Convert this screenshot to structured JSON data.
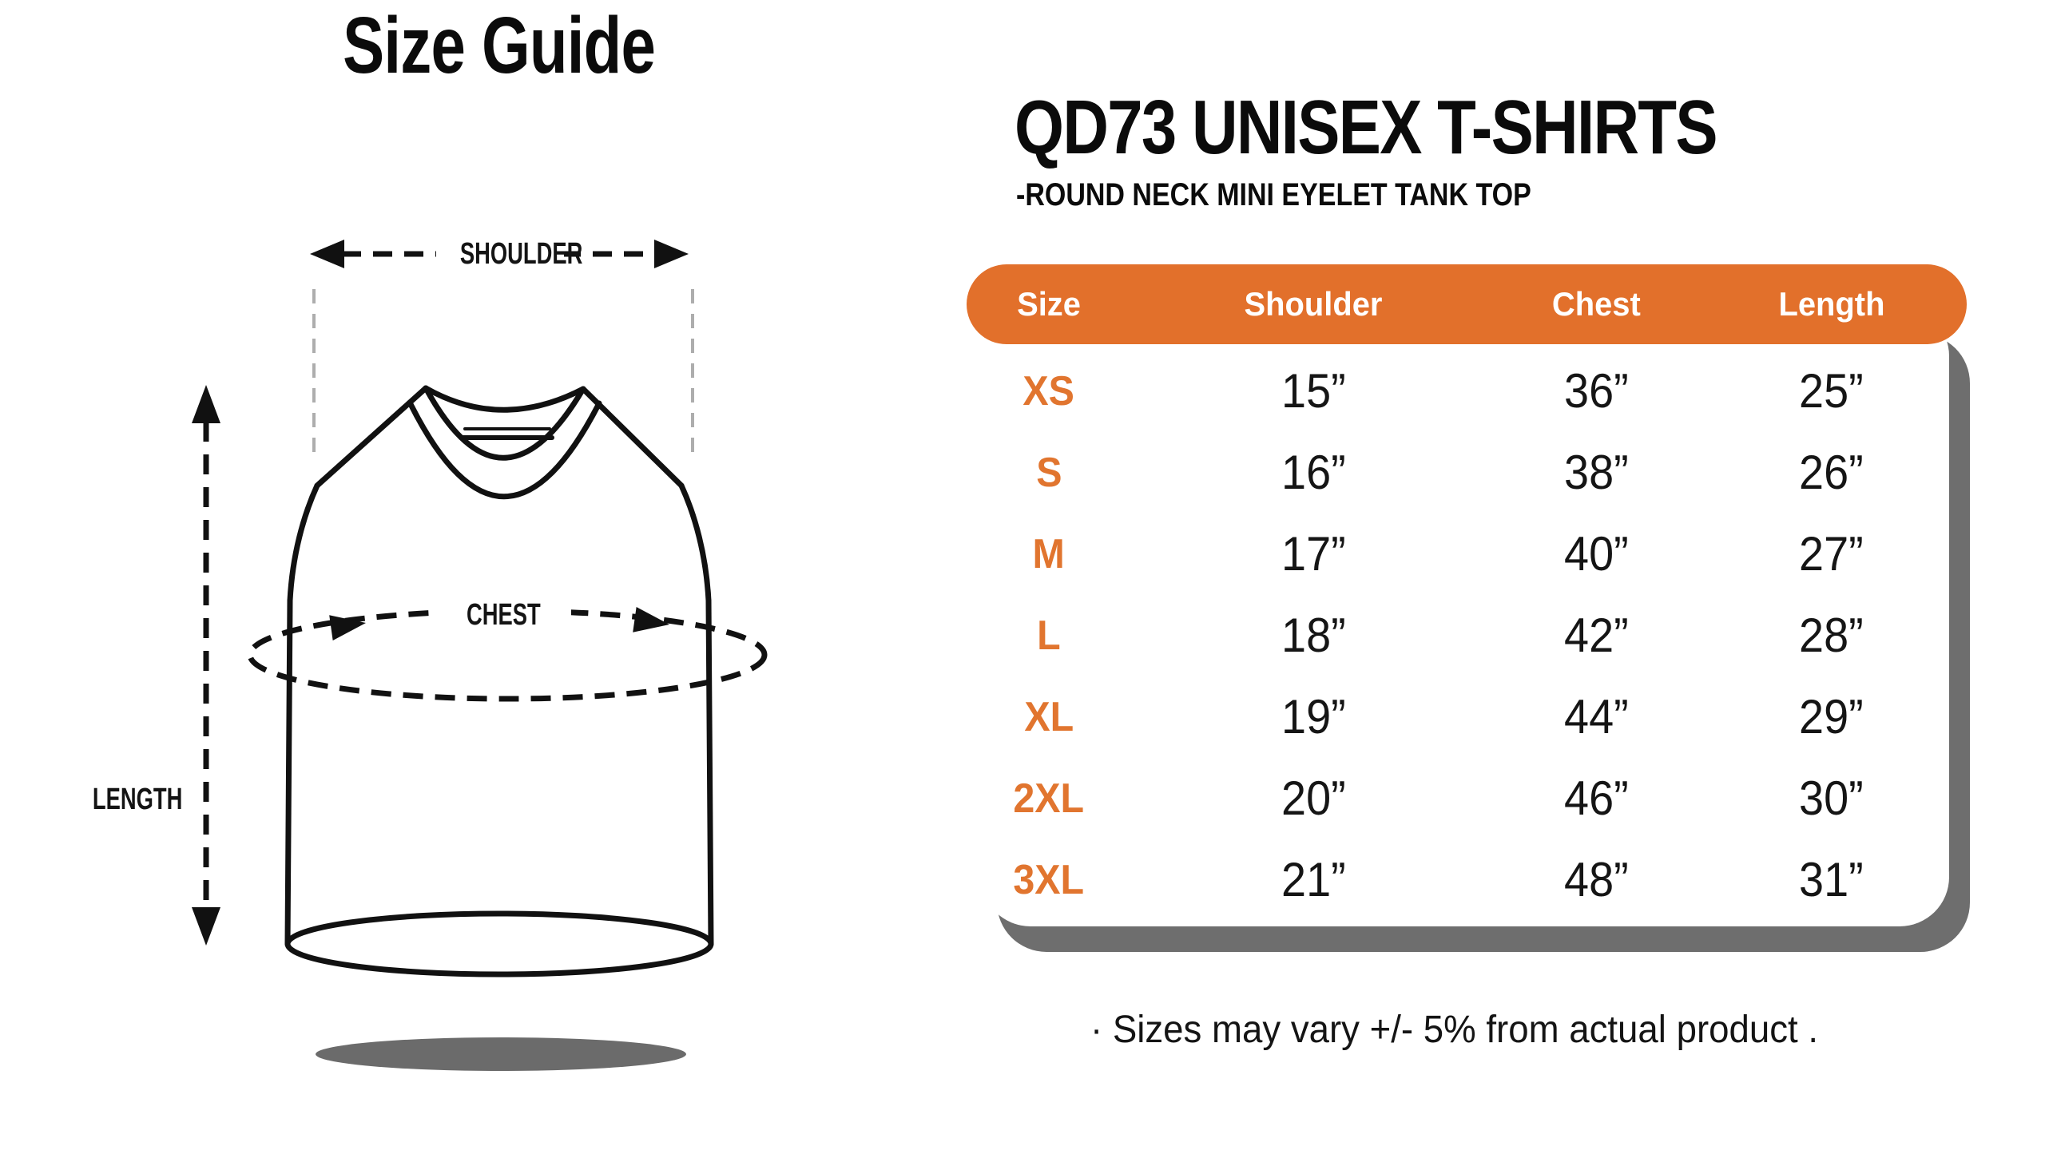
{
  "left_panel": {
    "title": "Size Guide",
    "labels": {
      "shoulder": "SHOULDER",
      "chest": "CHEST",
      "length": "LENGTH"
    }
  },
  "right_panel": {
    "title": "QD73 UNISEX T-SHIRTS",
    "subtitle": "-ROUND NECK MINI EYELET TANK TOP",
    "note": "· Sizes may vary +/- 5% from actual product .",
    "table": {
      "headers": [
        "Size",
        "Shoulder",
        "Chest",
        "Length"
      ],
      "rows": [
        {
          "size": "XS",
          "shoulder": "15”",
          "chest": "36”",
          "length": "25”"
        },
        {
          "size": "S",
          "shoulder": "16”",
          "chest": "38”",
          "length": "26”"
        },
        {
          "size": "M",
          "shoulder": "17”",
          "chest": "40”",
          "length": "27”"
        },
        {
          "size": "L",
          "shoulder": "18”",
          "chest": "42”",
          "length": "28”"
        },
        {
          "size": "XL",
          "shoulder": "19”",
          "chest": "44”",
          "length": "29”"
        },
        {
          "size": "2XL",
          "shoulder": "20”",
          "chest": "46”",
          "length": "30”"
        },
        {
          "size": "3XL",
          "shoulder": "21”",
          "chest": "48”",
          "length": "31”"
        }
      ]
    }
  },
  "colors": {
    "accent_orange": "#E2702B",
    "size_label_orange": "#E1752F",
    "card_shadow_gray": "#6E6E6E",
    "ground_shadow_gray": "#6B6B6B"
  },
  "chart_data": {
    "type": "table",
    "title": "QD73 UNISEX T-SHIRTS",
    "subtitle": "-ROUND NECK MINI EYELET TANK TOP",
    "columns": [
      "Size",
      "Shoulder",
      "Chest",
      "Length"
    ],
    "unit": "inches",
    "rows": [
      [
        "XS",
        15,
        36,
        25
      ],
      [
        "S",
        16,
        38,
        26
      ],
      [
        "M",
        17,
        40,
        27
      ],
      [
        "L",
        18,
        42,
        28
      ],
      [
        "XL",
        19,
        44,
        29
      ],
      [
        "2XL",
        20,
        46,
        30
      ],
      [
        "3XL",
        21,
        48,
        31
      ]
    ],
    "note": "Sizes may vary +/- 5% from actual product"
  }
}
